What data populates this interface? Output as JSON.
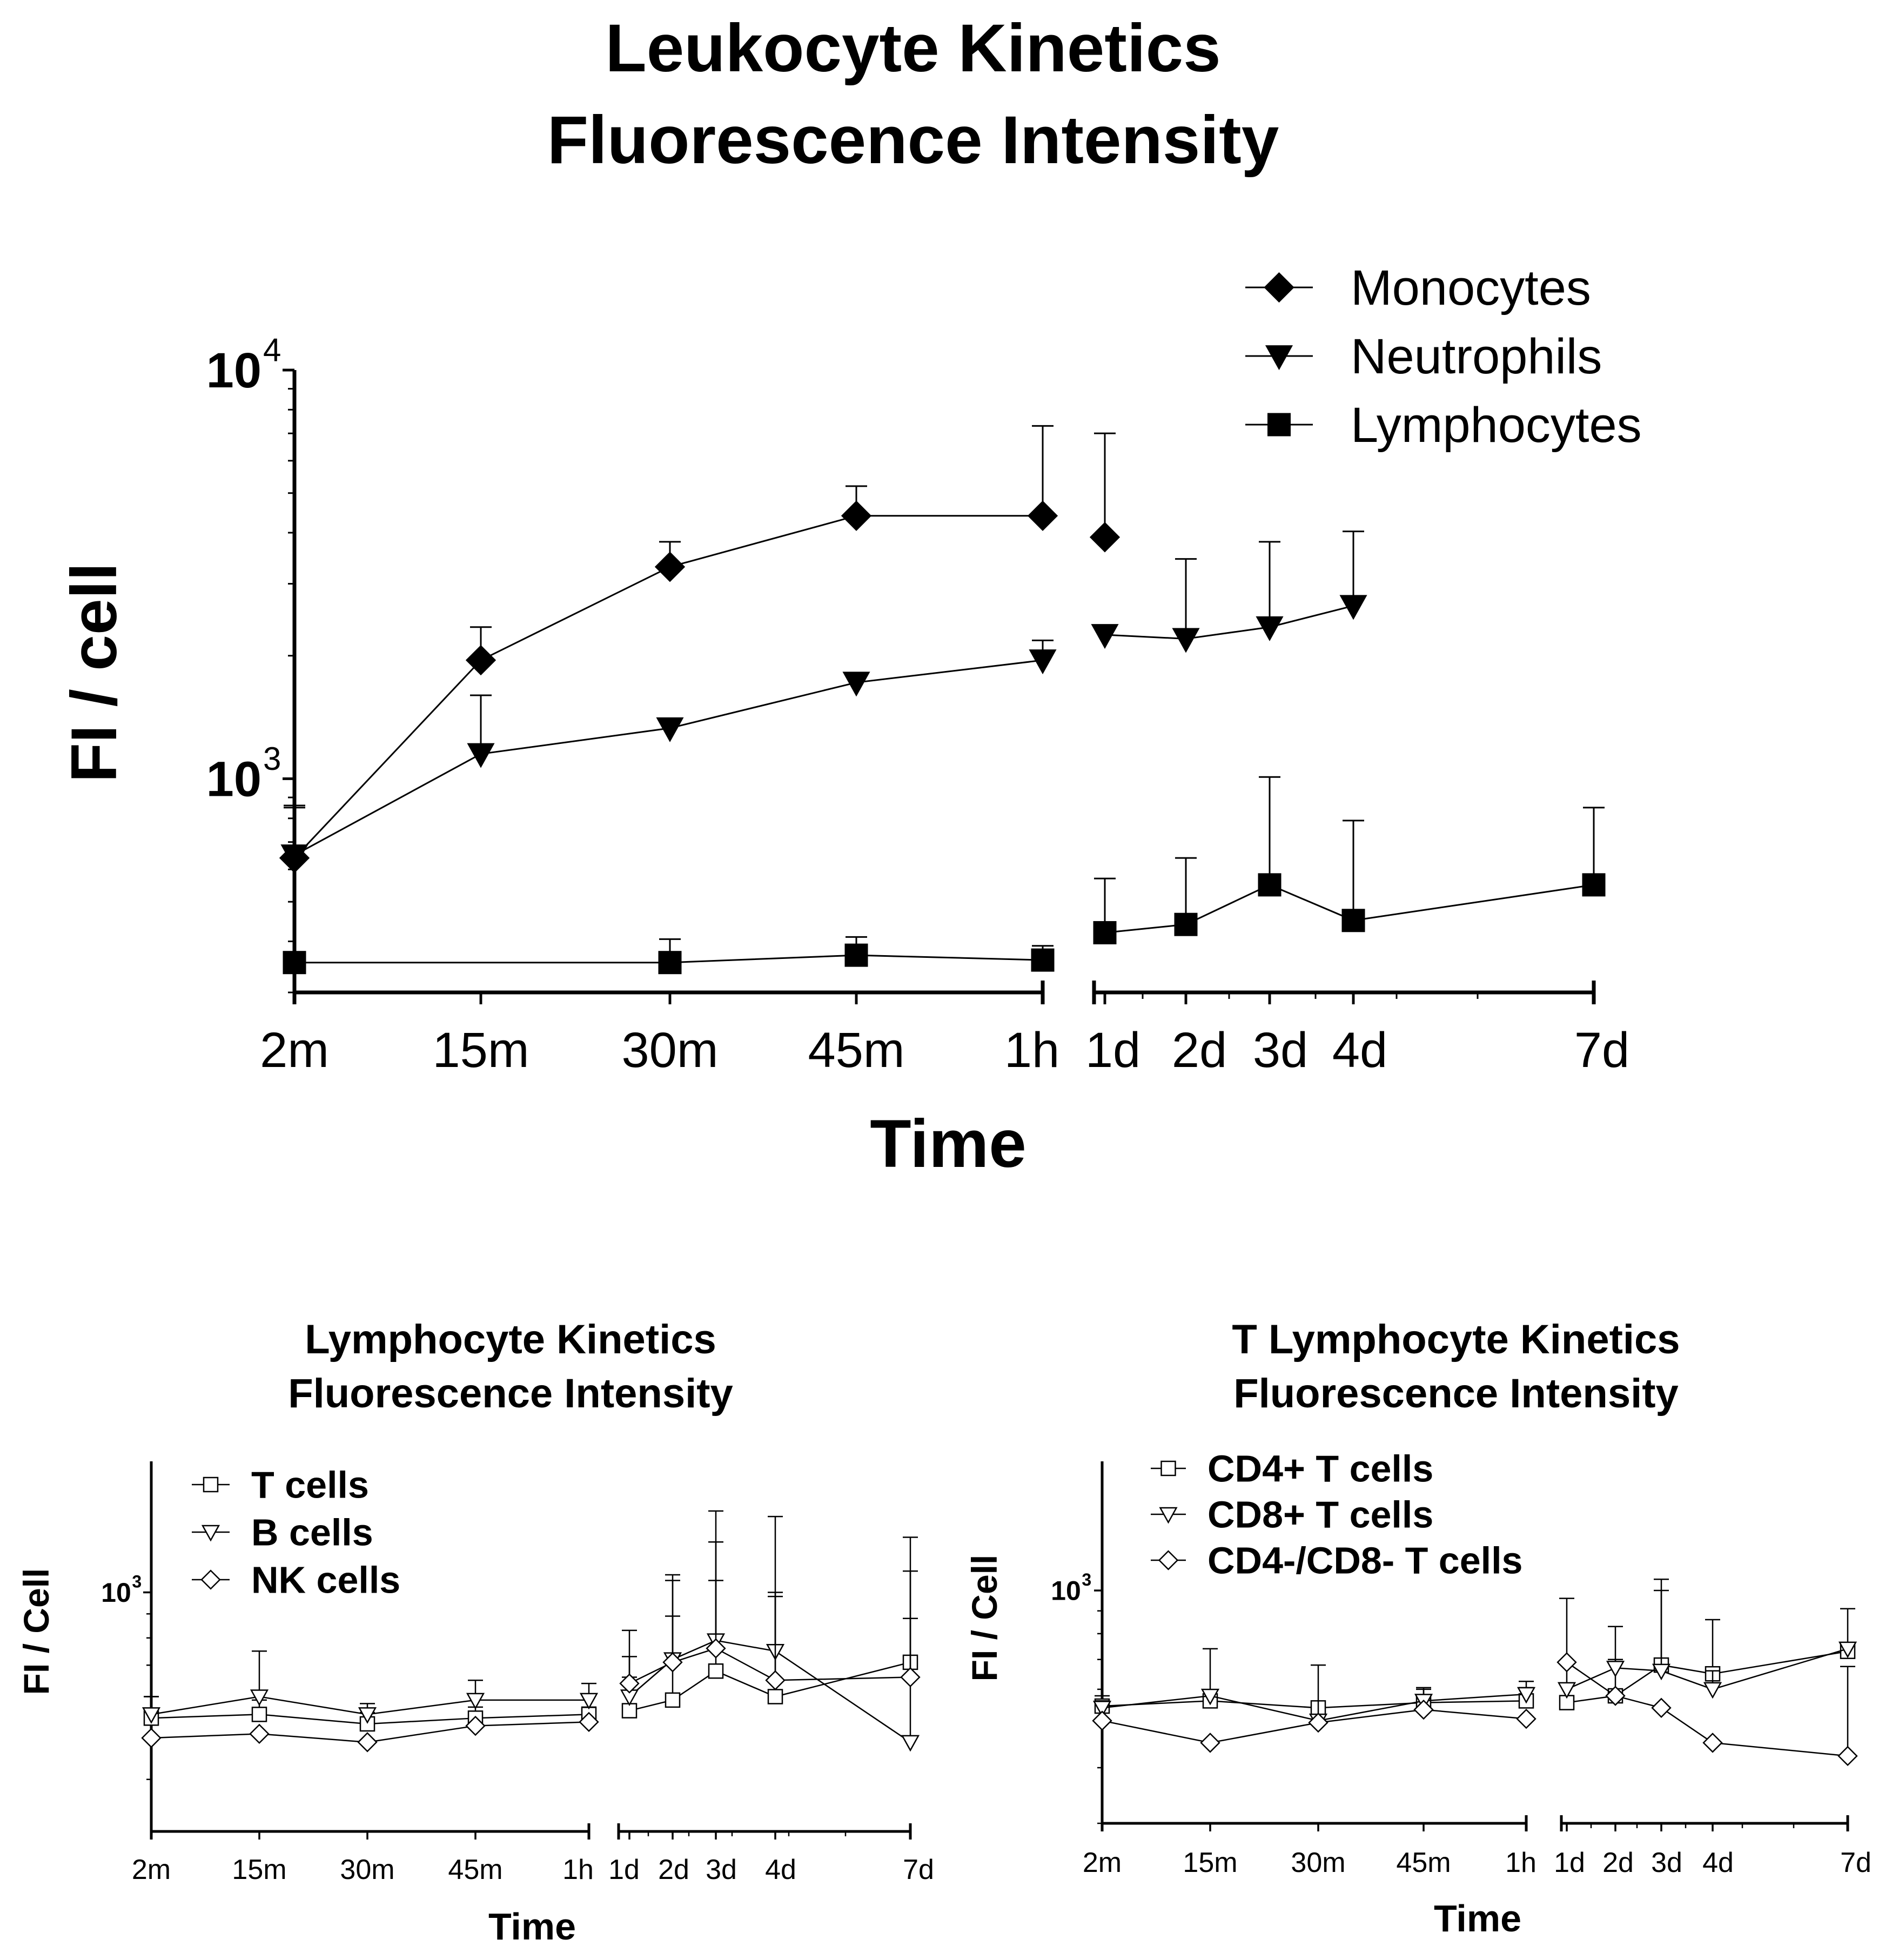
{
  "chart_data": [
    {
      "id": "leukocyte",
      "type": "line",
      "title_lines": [
        "Leukocyte Kinetics",
        "Fluorescence Intensity"
      ],
      "xlabel": "Time",
      "ylabel": "FI / cell",
      "yscale": "log",
      "ylim": [
        300,
        10000
      ],
      "y_tick_base": "10",
      "y_ticks": [
        {
          "exp": "3",
          "value": 1000
        },
        {
          "exp": "4",
          "value": 10000
        }
      ],
      "categories": [
        "2m",
        "15m",
        "30m",
        "45m",
        "1h",
        "1d",
        "2d",
        "3d",
        "4d",
        "7d"
      ],
      "segments": [
        {
          "range": [
            0,
            4
          ],
          "tick_labels": [
            "2m",
            "15m",
            "30m",
            "45m",
            "1h"
          ]
        },
        {
          "range": [
            5,
            9
          ],
          "tick_labels": [
            "1d",
            "2d",
            "3d",
            "4d",
            "7d"
          ]
        }
      ],
      "legend_position": "top-right",
      "series": [
        {
          "name": "Monocytes",
          "marker": "diamond",
          "filled": true,
          "values": [
            640,
            1950,
            3300,
            4400,
            4400,
            3900,
            null,
            null,
            null,
            null
          ],
          "errors": [
            220,
            400,
            500,
            800,
            2900,
            3100,
            null,
            null,
            null,
            null
          ]
        },
        {
          "name": "Neutrophils",
          "marker": "triangle-down",
          "filled": true,
          "values": [
            650,
            1150,
            1330,
            1720,
            1950,
            2250,
            2200,
            2350,
            2650,
            null
          ],
          "errors": [
            200,
            450,
            null,
            null,
            230,
            null,
            1250,
            1450,
            1380,
            null
          ]
        },
        {
          "name": "Lymphocytes",
          "marker": "square",
          "filled": true,
          "values": [
            355,
            null,
            355,
            370,
            360,
            420,
            440,
            550,
            450,
            550
          ],
          "errors": [
            null,
            null,
            50,
            40,
            30,
            150,
            200,
            460,
            340,
            300
          ]
        }
      ]
    },
    {
      "id": "lymphocyte",
      "type": "line",
      "title_lines": [
        "Lymphocyte Kinetics",
        "Fluorescence Intensity"
      ],
      "xlabel": "Time",
      "ylabel": "FI / Cell",
      "yscale": "log",
      "ylim": [
        310,
        1900
      ],
      "y_tick_base": "10",
      "y_ticks": [
        {
          "exp": "3",
          "value": 1000
        }
      ],
      "categories": [
        "2m",
        "15m",
        "30m",
        "45m",
        "1h",
        "1d",
        "2d",
        "3d",
        "4d",
        "7d"
      ],
      "segments": [
        {
          "range": [
            0,
            4
          ],
          "tick_labels": [
            "2m",
            "15m",
            "30m",
            "45m",
            "1h"
          ]
        },
        {
          "range": [
            5,
            9
          ],
          "tick_labels": [
            "1d",
            "2d",
            "3d",
            "4d",
            "7d"
          ]
        }
      ],
      "legend_position": "top-left",
      "series": [
        {
          "name": "T cells",
          "marker": "square",
          "filled": false,
          "values": [
            540,
            550,
            525,
            540,
            550,
            560,
            590,
            680,
            600,
            710
          ],
          "errors": [
            60,
            40,
            30,
            30,
            20,
            100,
            300,
            600,
            400,
            400
          ]
        },
        {
          "name": "B cells",
          "marker": "triangle-down",
          "filled": false,
          "values": [
            550,
            600,
            550,
            590,
            590,
            600,
            720,
            790,
            750,
            480
          ],
          "errors": [
            50,
            150,
            30,
            60,
            50,
            130,
            340,
            700,
            700,
            400
          ]
        },
        {
          "name": "NK cells",
          "marker": "diamond",
          "filled": false,
          "values": [
            490,
            500,
            480,
            520,
            530,
            640,
            710,
            760,
            650,
            660
          ],
          "errors": [
            null,
            null,
            null,
            null,
            null,
            190,
            380,
            300,
            330,
            650
          ]
        }
      ]
    },
    {
      "id": "t_lymphocyte",
      "type": "line",
      "title_lines": [
        "T Lymphocyte Kinetics",
        "Fluorescence Intensity"
      ],
      "xlabel": "Time",
      "ylabel": "FI / Cell",
      "yscale": "log",
      "ylim": [
        300,
        1950
      ],
      "y_tick_base": "10",
      "y_ticks": [
        {
          "exp": "3",
          "value": 1000
        }
      ],
      "categories": [
        "2m",
        "15m",
        "30m",
        "45m",
        "1h",
        "1d",
        "2d",
        "3d",
        "4d",
        "7d"
      ],
      "segments": [
        {
          "range": [
            0,
            4
          ],
          "tick_labels": [
            "2m",
            "15m",
            "30m",
            "45m",
            "1h"
          ]
        },
        {
          "range": [
            5,
            9
          ],
          "tick_labels": [
            "1d",
            "2d",
            "3d",
            "4d",
            "7d"
          ]
        }
      ],
      "legend_position": "top-left",
      "series": [
        {
          "name": "CD4+ T cells",
          "marker": "square",
          "filled": false,
          "values": [
            550,
            565,
            545,
            560,
            565,
            560,
            580,
            680,
            650,
            730
          ],
          "errors": [
            30,
            null,
            null,
            40,
            40,
            null,
            120,
            320,
            210,
            null
          ]
        },
        {
          "name": "CD8+ T cells",
          "marker": "triangle-down",
          "filled": false,
          "values": [
            545,
            580,
            510,
            565,
            585,
            600,
            670,
            660,
            600,
            740
          ],
          "errors": [
            20,
            160,
            170,
            40,
            40,
            360,
            160,
            400,
            60,
            170
          ]
        },
        {
          "name": "CD4-/CD8- T cells",
          "marker": "diamond",
          "filled": false,
          "values": [
            510,
            455,
            505,
            540,
            515,
            690,
            580,
            545,
            455,
            425
          ],
          "errors": [
            null,
            null,
            null,
            null,
            null,
            null,
            null,
            null,
            null,
            250
          ]
        }
      ]
    }
  ]
}
